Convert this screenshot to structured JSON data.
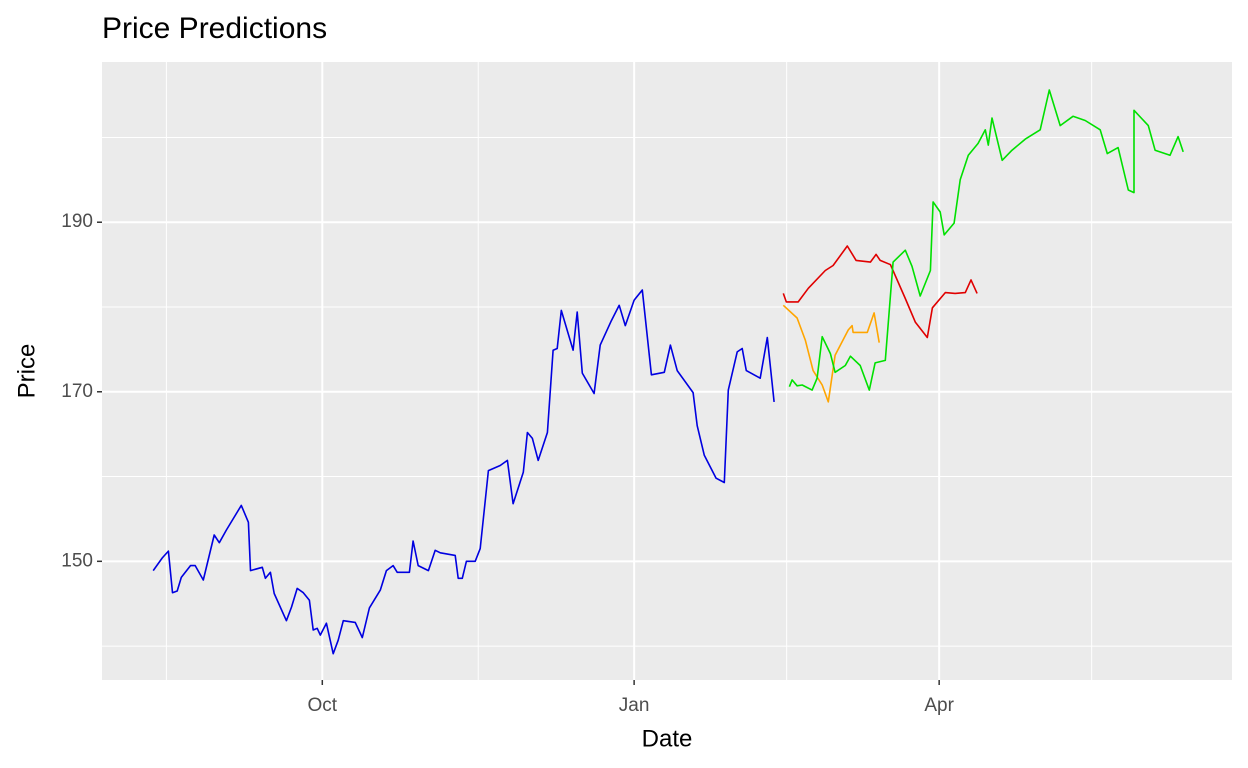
{
  "chart_data": {
    "type": "line",
    "title": "Price Predictions",
    "x_label": "Date",
    "y_label": "Price",
    "xlim": [
      -65,
      268.4
    ],
    "ylim": [
      136,
      208.9
    ],
    "xticks": [
      {
        "value": 0,
        "label": "Oct"
      },
      {
        "value": 92,
        "label": "Jan"
      },
      {
        "value": 182,
        "label": "Apr"
      }
    ],
    "yticks": [
      150,
      170,
      190
    ],
    "grid": true,
    "series": [
      {
        "color": "#0000e0",
        "x": [
          -49.9,
          -47.2,
          -45.4,
          -44.2,
          -42.8,
          -41.6,
          -38.9,
          -37.5,
          -35.1,
          -31.9,
          -30.4,
          -28.3,
          -23.9,
          -21.8,
          -21.2,
          -17.7,
          -16.8,
          -15.3,
          -14.2,
          -10.6,
          -9.1,
          -7.4,
          -5.6,
          -3.8,
          -2.7,
          -1.5,
          -0.6,
          1.2,
          3.2,
          4.7,
          6.2,
          9.7,
          11.8,
          13.9,
          17.1,
          18.9,
          20.9,
          22.1,
          25.7,
          26.8,
          28.3,
          31.3,
          33.3,
          34.8,
          39.2,
          40.1,
          41.3,
          42.5,
          45.1,
          46.6,
          49.0,
          52.5,
          54.6,
          56.3,
          59.3,
          60.5,
          62.0,
          63.7,
          66.4,
          68.1,
          69.3,
          70.5,
          74.0,
          75.2,
          76.7,
          80.2,
          82.0,
          85.3,
          87.6,
          89.4,
          92.0,
          94.4,
          97.1,
          100.9,
          102.7,
          104.7,
          109.4,
          110.6,
          112.7,
          116.2,
          118.6,
          119.8,
          122.4,
          123.9,
          125.1,
          129.2,
          131.3,
          133.3
        ],
        "values": [
          148.9,
          150.4,
          151.2,
          146.3,
          146.5,
          148.1,
          149.5,
          149.5,
          147.8,
          153.1,
          152.2,
          153.7,
          156.6,
          154.6,
          148.9,
          149.3,
          148.0,
          148.7,
          146.2,
          143.0,
          144.6,
          146.8,
          146.3,
          145.4,
          141.9,
          142.1,
          141.3,
          142.7,
          139.1,
          140.7,
          143.0,
          142.8,
          141.0,
          144.5,
          146.6,
          148.9,
          149.5,
          148.7,
          148.7,
          152.4,
          149.5,
          148.9,
          151.3,
          151.0,
          150.7,
          148.0,
          148.0,
          150.0,
          150.0,
          151.5,
          160.7,
          161.3,
          161.9,
          156.8,
          160.5,
          165.2,
          164.5,
          161.9,
          165.2,
          174.9,
          175.1,
          179.6,
          174.9,
          179.4,
          172.2,
          169.8,
          175.5,
          178.4,
          180.2,
          177.8,
          180.8,
          182.0,
          172.0,
          172.3,
          175.5,
          172.5,
          169.9,
          166.0,
          162.5,
          159.8,
          159.3,
          170.2,
          174.7,
          175.1,
          172.5,
          171.6,
          176.4,
          168.8
        ]
      },
      {
        "color": "#e00000",
        "x": [
          136.0,
          136.9,
          140.4,
          143.4,
          148.4,
          150.7,
          154.9,
          157.5,
          161.7,
          163.4,
          164.6,
          167.6,
          172.0,
          175.0,
          178.5,
          180.0,
          183.8,
          186.7,
          189.7,
          191.4,
          193.2
        ],
        "values": [
          181.6,
          180.6,
          180.6,
          182.2,
          184.3,
          184.9,
          187.2,
          185.5,
          185.3,
          186.2,
          185.5,
          185.0,
          181.0,
          178.2,
          176.4,
          179.9,
          181.7,
          181.6,
          181.7,
          183.2,
          181.6
        ]
      },
      {
        "color": "#ffa500",
        "x": [
          136.0,
          140.1,
          142.5,
          144.8,
          147.5,
          149.3,
          151.3,
          155.2,
          156.3,
          156.6,
          160.8,
          162.8,
          164.3
        ],
        "values": [
          180.2,
          178.7,
          176.1,
          172.5,
          170.8,
          168.8,
          174.3,
          177.3,
          177.8,
          177.0,
          177.0,
          179.3,
          175.8
        ]
      },
      {
        "color": "#00e000",
        "x": [
          137.8,
          138.6,
          140.1,
          141.6,
          144.5,
          146.0,
          147.5,
          149.9,
          151.3,
          154.3,
          155.8,
          158.7,
          161.4,
          163.1,
          166.1,
          168.4,
          172.0,
          174.0,
          176.4,
          179.4,
          180.2,
          182.3,
          183.5,
          186.4,
          188.2,
          190.6,
          193.5,
          195.6,
          196.5,
          197.6,
          200.6,
          203.5,
          207.4,
          211.8,
          214.5,
          217.7,
          221.5,
          225.1,
          229.5,
          231.6,
          234.8,
          237.8,
          239.5,
          239.5,
          243.7,
          245.7,
          250.1,
          252.5,
          254.0
        ],
        "values": [
          170.6,
          171.4,
          170.7,
          170.8,
          170.2,
          171.6,
          176.5,
          174.5,
          172.3,
          173.1,
          174.2,
          173.1,
          170.2,
          173.4,
          173.7,
          185.3,
          186.7,
          184.8,
          181.3,
          184.3,
          192.4,
          191.2,
          188.5,
          189.9,
          195.0,
          197.9,
          199.3,
          200.9,
          199.1,
          202.3,
          197.3,
          198.5,
          199.8,
          200.9,
          205.6,
          201.4,
          202.5,
          202.0,
          200.9,
          198.1,
          198.8,
          193.8,
          193.5,
          203.2,
          201.4,
          198.5,
          197.9,
          200.1,
          198.3
        ]
      }
    ]
  }
}
